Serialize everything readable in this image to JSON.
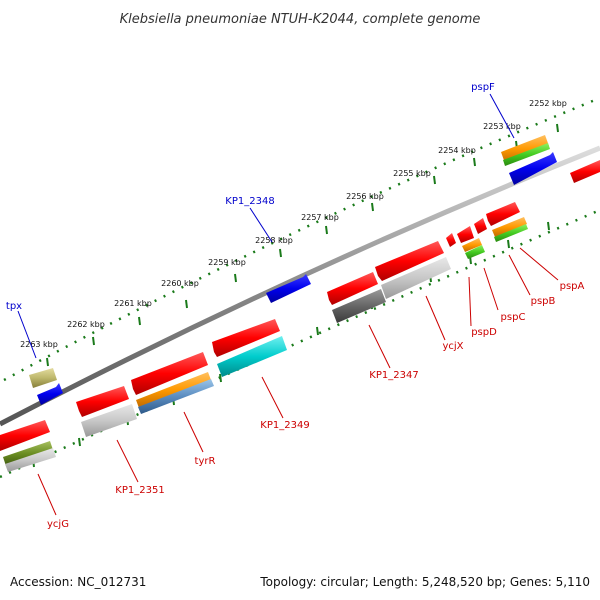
{
  "title": "Klebsiella pneumoniae NTUH-K2044, complete genome",
  "footer": {
    "accession": "Accession: NC_012731",
    "topology": "Topology: circular; Length: 5,248,520 bp; Genes: 5,110"
  },
  "colors": {
    "plus_strand_label": "#0000cc",
    "minus_strand_label": "#cc0000",
    "tick_marks": "#1a7a1a",
    "backbone": "#888888"
  },
  "ticks": [
    "2252 kbp",
    "2253 kbp",
    "2254 kbp",
    "2255 kbp",
    "2256 kbp",
    "2257 kbp",
    "2258 kbp",
    "2259 kbp",
    "2260 kbp",
    "2261 kbp",
    "2262 kbp",
    "2263 kbp"
  ],
  "genes": [
    {
      "label": "pspF",
      "strand": "plus"
    },
    {
      "label": "KP1_2348",
      "strand": "plus"
    },
    {
      "label": "tpx",
      "strand": "plus"
    },
    {
      "label": "pspA",
      "strand": "minus"
    },
    {
      "label": "pspB",
      "strand": "minus"
    },
    {
      "label": "pspC",
      "strand": "minus"
    },
    {
      "label": "pspD",
      "strand": "minus"
    },
    {
      "label": "ycjX",
      "strand": "minus"
    },
    {
      "label": "KP1_2347",
      "strand": "minus"
    },
    {
      "label": "KP1_2349",
      "strand": "minus"
    },
    {
      "label": "tyrR",
      "strand": "minus"
    },
    {
      "label": "KP1_2351",
      "strand": "minus"
    },
    {
      "label": "ycjG",
      "strand": "minus"
    }
  ]
}
